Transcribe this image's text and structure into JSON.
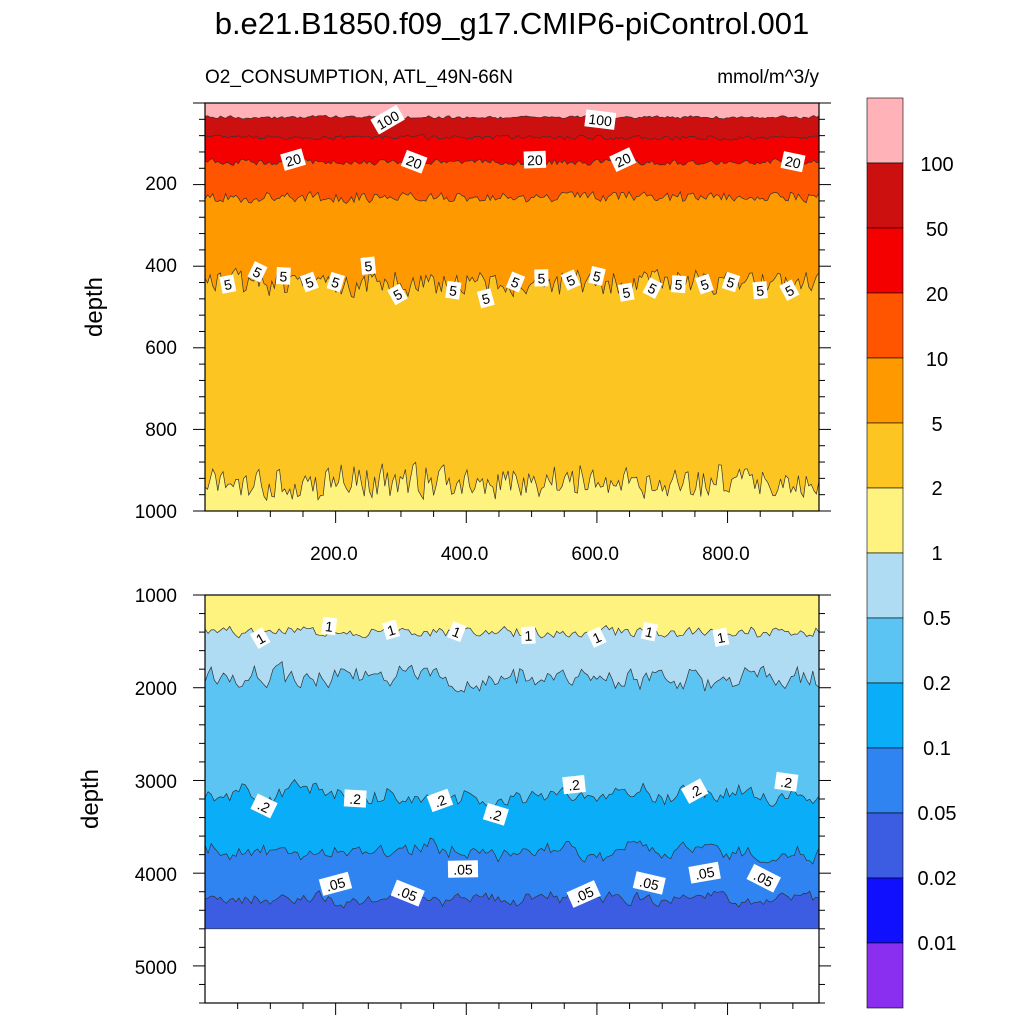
{
  "figure": {
    "title": "b.e21.B1850.f09_g17.CMIP6-piControl.001",
    "variable_label": "O2_CONSUMPTION, ATL_49N-66N",
    "units_label": "mmol/m^3/y"
  },
  "colorbar": {
    "labels": [
      "100",
      "50",
      "20",
      "10",
      "5",
      "2",
      "1",
      "0.5",
      "0.2",
      "0.1",
      "0.05",
      "0.02",
      "0.01"
    ],
    "colors": [
      "#FFB3B8",
      "#CC1010",
      "#F50000",
      "#FF5500",
      "#FF9900",
      "#FCC522",
      "#FFF380",
      "#B0DCF3",
      "#5CC4F2",
      "#0AAEF8",
      "#2F84F2",
      "#3C5CE2",
      "#1010FF",
      "#8A2EF0"
    ]
  },
  "chart_data": [
    {
      "type": "contour",
      "panel": "upper",
      "ylabel": "depth",
      "ylim": [
        1000,
        0
      ],
      "xlim": [
        0,
        940
      ],
      "x_ticklabels": [
        "200.0",
        "400.0",
        "600.0",
        "800.0"
      ],
      "y_ticklabels": [
        "200",
        "400",
        "600",
        "800",
        "1000"
      ],
      "boundaries": [
        {
          "level": 100,
          "mean_depth": 35
        },
        {
          "level": 50,
          "mean_depth": 85
        },
        {
          "level": 20,
          "mean_depth": 145
        },
        {
          "level": 10,
          "mean_depth": 230
        },
        {
          "level": 5,
          "mean_depth": 440
        },
        {
          "level": 2,
          "mean_depth": 930
        }
      ],
      "contour_labels": [
        {
          "text": "100",
          "x": 280,
          "depth": 42
        },
        {
          "text": "100",
          "x": 605,
          "depth": 42
        },
        {
          "text": "20",
          "x": 135,
          "depth": 140
        },
        {
          "text": "20",
          "x": 320,
          "depth": 145
        },
        {
          "text": "20",
          "x": 505,
          "depth": 140
        },
        {
          "text": "20",
          "x": 640,
          "depth": 140
        },
        {
          "text": "20",
          "x": 900,
          "depth": 145
        },
        {
          "text": "5",
          "x": 35,
          "depth": 445
        },
        {
          "text": "5",
          "x": 80,
          "depth": 415
        },
        {
          "text": "5",
          "x": 120,
          "depth": 425
        },
        {
          "text": "5",
          "x": 160,
          "depth": 440
        },
        {
          "text": "5",
          "x": 200,
          "depth": 440
        },
        {
          "text": "5",
          "x": 250,
          "depth": 400
        },
        {
          "text": "5",
          "x": 295,
          "depth": 470
        },
        {
          "text": "5",
          "x": 380,
          "depth": 460
        },
        {
          "text": "5",
          "x": 430,
          "depth": 480
        },
        {
          "text": "5",
          "x": 475,
          "depth": 440
        },
        {
          "text": "5",
          "x": 515,
          "depth": 430
        },
        {
          "text": "5",
          "x": 560,
          "depth": 435
        },
        {
          "text": "5",
          "x": 600,
          "depth": 425
        },
        {
          "text": "5",
          "x": 645,
          "depth": 465
        },
        {
          "text": "5",
          "x": 685,
          "depth": 455
        },
        {
          "text": "5",
          "x": 725,
          "depth": 445
        },
        {
          "text": "5",
          "x": 765,
          "depth": 445
        },
        {
          "text": "5",
          "x": 805,
          "depth": 440
        },
        {
          "text": "5",
          "x": 850,
          "depth": 460
        },
        {
          "text": "5",
          "x": 895,
          "depth": 460
        }
      ]
    },
    {
      "type": "contour",
      "panel": "lower",
      "ylabel": "depth",
      "ylim": [
        5400,
        1000
      ],
      "xlim": [
        0,
        940
      ],
      "y_ticklabels": [
        "1000",
        "2000",
        "3000",
        "4000",
        "5000"
      ],
      "ocean_bottom_depth": 4600,
      "boundaries": [
        {
          "level": 1,
          "mean_depth": 1400
        },
        {
          "level": 0.5,
          "mean_depth": 1900
        },
        {
          "level": 0.2,
          "mean_depth": 3150
        },
        {
          "level": 0.1,
          "mean_depth": 3750
        },
        {
          "level": 0.05,
          "mean_depth": 4270
        }
      ],
      "contour_labels": [
        {
          "text": "1",
          "x": 85,
          "depth": 1470
        },
        {
          "text": "1",
          "x": 190,
          "depth": 1340
        },
        {
          "text": "1",
          "x": 285,
          "depth": 1380
        },
        {
          "text": "1",
          "x": 385,
          "depth": 1400
        },
        {
          "text": "1",
          "x": 495,
          "depth": 1440
        },
        {
          "text": "1",
          "x": 600,
          "depth": 1460
        },
        {
          "text": "1",
          "x": 680,
          "depth": 1400
        },
        {
          "text": "1",
          "x": 790,
          "depth": 1460
        },
        {
          "text": ".2",
          "x": 90,
          "depth": 3280
        },
        {
          "text": ".2",
          "x": 230,
          "depth": 3200
        },
        {
          "text": ".2",
          "x": 360,
          "depth": 3220
        },
        {
          "text": ".2",
          "x": 445,
          "depth": 3370
        },
        {
          "text": ".2",
          "x": 565,
          "depth": 3050
        },
        {
          "text": ".2",
          "x": 750,
          "depth": 3120
        },
        {
          "text": ".2",
          "x": 890,
          "depth": 3020
        },
        {
          "text": ".05",
          "x": 200,
          "depth": 4120
        },
        {
          "text": ".05",
          "x": 310,
          "depth": 4220
        },
        {
          "text": ".05",
          "x": 395,
          "depth": 3960
        },
        {
          "text": ".05",
          "x": 580,
          "depth": 4230
        },
        {
          "text": ".05",
          "x": 680,
          "depth": 4110
        },
        {
          "text": ".05",
          "x": 765,
          "depth": 4000
        },
        {
          "text": ".05",
          "x": 855,
          "depth": 4060
        }
      ]
    }
  ]
}
